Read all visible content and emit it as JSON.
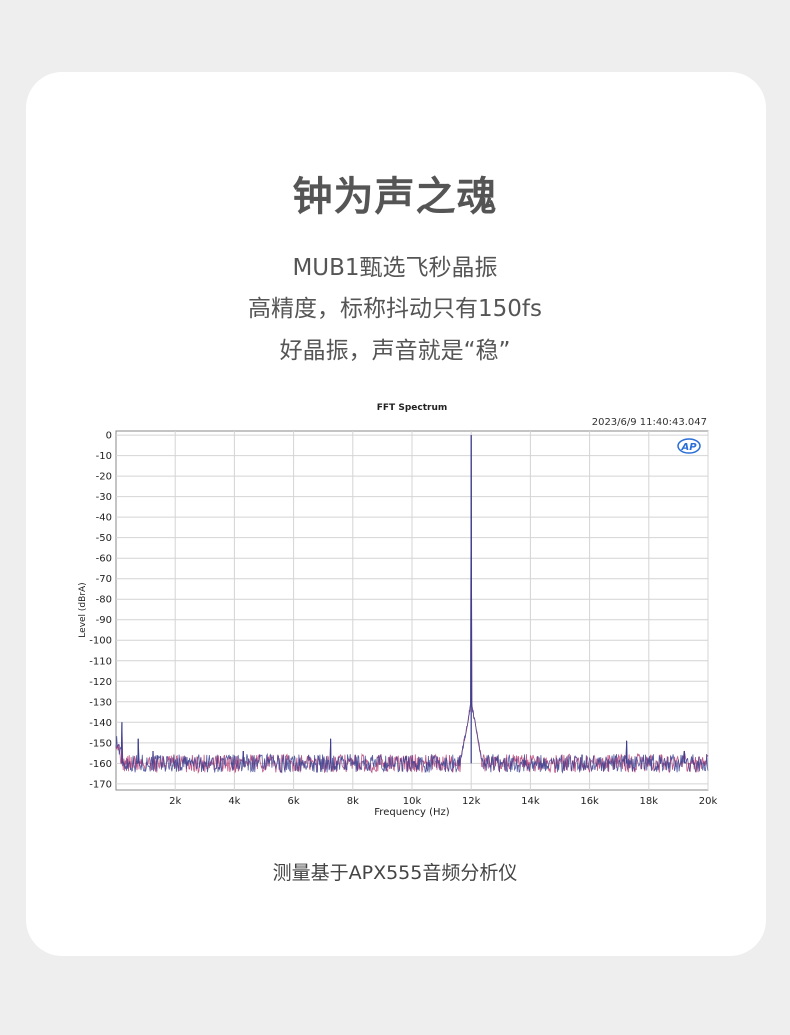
{
  "headline": "钟为声之魂",
  "sublines": [
    "MUB1甄选飞秒晶振",
    "高精度，标称抖动只有150fs",
    "好晶振，声音就是“稳”"
  ],
  "footer_note": "测量基于APX555音频分析仪",
  "chart_data": {
    "type": "line",
    "title": "FFT Spectrum",
    "timestamp": "2023/6/9 11:40:43.047",
    "logo_text": "AP",
    "xlabel": "Frequency (Hz)",
    "ylabel": "Level (dBrA)",
    "xlim": [
      0,
      20000
    ],
    "ylim": [
      -173,
      2
    ],
    "x_ticks": [
      2000,
      4000,
      6000,
      8000,
      10000,
      12000,
      14000,
      16000,
      18000,
      20000
    ],
    "x_tick_labels": [
      "2k",
      "4k",
      "6k",
      "8k",
      "10k",
      "12k",
      "14k",
      "16k",
      "18k",
      "20k"
    ],
    "y_ticks": [
      0,
      -10,
      -20,
      -30,
      -40,
      -50,
      -60,
      -70,
      -80,
      -90,
      -100,
      -110,
      -120,
      -130,
      -140,
      -150,
      -160,
      -170
    ],
    "y_tick_labels": [
      "0",
      "-10",
      "-20",
      "-30",
      "-40",
      "-50",
      "-60",
      "-70",
      "-80",
      "-90",
      "-100",
      "-110",
      "-120",
      "-130",
      "-140",
      "-150",
      "-160",
      "-170"
    ],
    "grid": true,
    "noise_floor": -160,
    "colors": {
      "series_a": "#3a3f8f",
      "series_b": "#b0306a"
    },
    "peaks": [
      {
        "x": 12000,
        "y": 0
      },
      {
        "x": 200,
        "y": -140
      },
      {
        "x": 750,
        "y": -148
      },
      {
        "x": 1250,
        "y": -154
      },
      {
        "x": 4300,
        "y": -154
      },
      {
        "x": 7250,
        "y": -148
      },
      {
        "x": 17250,
        "y": -149
      },
      {
        "x": 19200,
        "y": -154
      }
    ]
  }
}
